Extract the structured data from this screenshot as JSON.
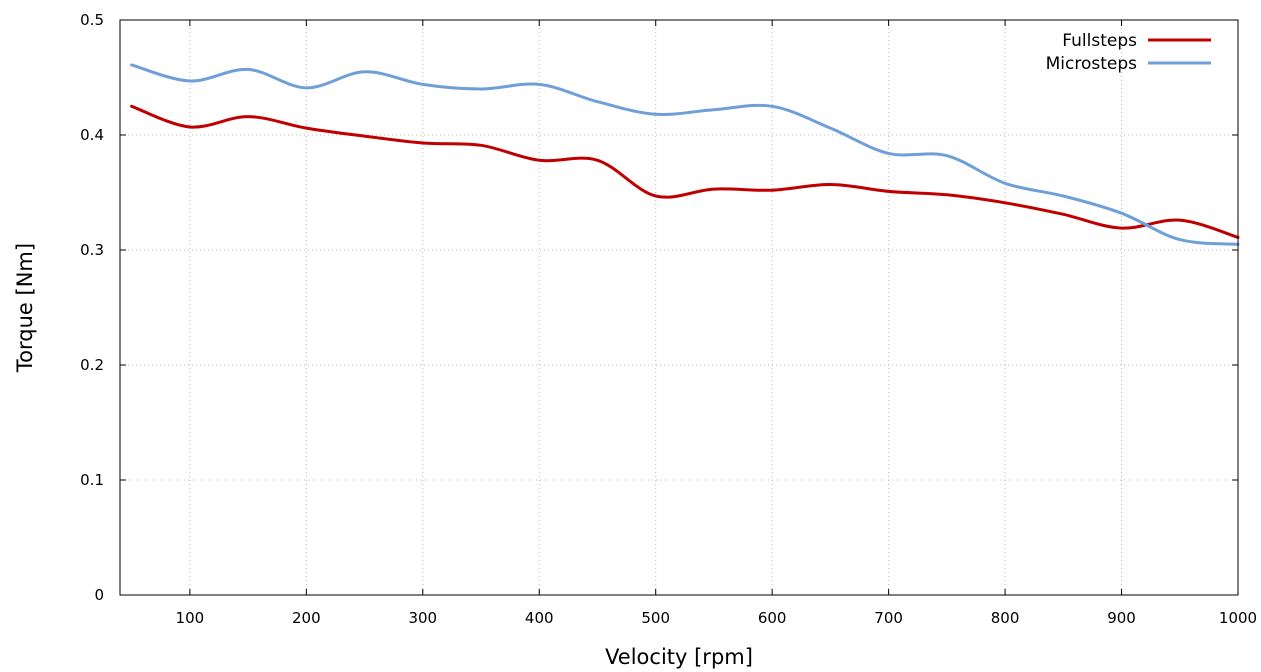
{
  "chart_data": {
    "type": "line",
    "xlabel": "Velocity [rpm]",
    "ylabel": "Torque [Nm]",
    "xlim": [
      40,
      1000
    ],
    "ylim": [
      0,
      0.5
    ],
    "x_ticks": [
      100,
      200,
      300,
      400,
      500,
      600,
      700,
      800,
      900,
      1000
    ],
    "y_ticks": [
      0,
      0.1,
      0.2,
      0.3,
      0.4,
      0.5
    ],
    "x_tick_labels": [
      "100",
      "200",
      "300",
      "400",
      "500",
      "600",
      "700",
      "800",
      "900",
      "1000"
    ],
    "y_tick_labels": [
      "0",
      "0.1",
      "0.2",
      "0.3",
      "0.4",
      "0.5"
    ],
    "grid": true,
    "legend_position": "top-right",
    "x": [
      50,
      100,
      150,
      200,
      250,
      300,
      350,
      400,
      450,
      500,
      550,
      600,
      650,
      700,
      750,
      800,
      850,
      900,
      950,
      1000
    ],
    "series": [
      {
        "name": "Fullsteps",
        "color": "#c00000",
        "values": [
          0.425,
          0.407,
          0.416,
          0.406,
          0.399,
          0.393,
          0.391,
          0.378,
          0.378,
          0.347,
          0.353,
          0.352,
          0.357,
          0.351,
          0.348,
          0.341,
          0.331,
          0.319,
          0.326,
          0.311
        ]
      },
      {
        "name": "Microsteps",
        "color": "#6f9fd8",
        "values": [
          0.461,
          0.447,
          0.457,
          0.441,
          0.455,
          0.444,
          0.44,
          0.444,
          0.429,
          0.418,
          0.422,
          0.425,
          0.406,
          0.384,
          0.382,
          0.358,
          0.347,
          0.332,
          0.309,
          0.305
        ]
      }
    ]
  }
}
